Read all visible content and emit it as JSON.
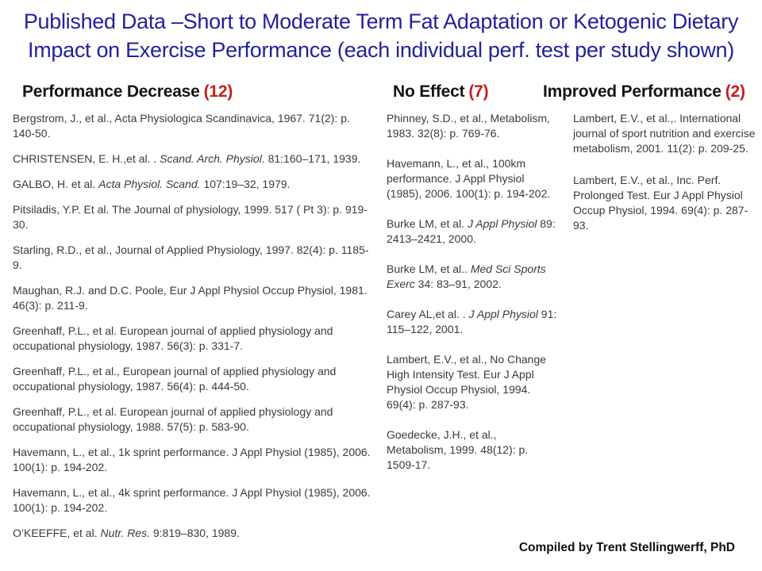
{
  "title": "Published Data –Short to Moderate Term Fat Adaptation or Ketogenic Dietary Impact on Exercise Performance (each individual perf. test per study shown)",
  "accent_colors": {
    "title_blue": "#22229b",
    "count_red": "#c31e1e"
  },
  "footer": {
    "credit": "Compiled by Trent Stellingwerff, PhD"
  },
  "columns": [
    {
      "header": "Performance Decrease",
      "count": "(12)",
      "items": [
        {
          "segments": [
            {
              "t": "Bergstrom, J., et al.,  Acta Physiologica Scandinavica, 1967. 71(2): p. 140-50.",
              "i": false
            }
          ]
        },
        {
          "segments": [
            {
              "t": "CHRISTENSEN, E. H.,et al. . ",
              "i": false
            },
            {
              "t": "Scand. Arch. Physiol",
              "i": true
            },
            {
              "t": ". 81:160–171, 1939.",
              "i": false
            }
          ]
        },
        {
          "segments": [
            {
              "t": "GALBO, H. et al. ",
              "i": false
            },
            {
              "t": "Acta Physiol. Scand.",
              "i": true
            },
            {
              "t": " 107:19–32, 1979.",
              "i": false
            }
          ]
        },
        {
          "segments": [
            {
              "t": "Pitsiladis, Y.P.  Et al.  The Journal of physiology, 1999. 517 ( Pt 3): p. 919-30.",
              "i": false
            }
          ]
        },
        {
          "segments": [
            {
              "t": "Starling, R.D., et al., Journal of Applied Physiology, 1997. 82(4): p. 1185-9.",
              "i": false
            }
          ]
        },
        {
          "segments": [
            {
              "t": "Maughan, R.J. and D.C. Poole, Eur J Appl Physiol Occup Physiol, 1981. 46(3): p. 211-9.",
              "i": false
            }
          ]
        },
        {
          "segments": [
            {
              "t": "Greenhaff, P.L., et  al.  European journal of applied physiology and occupational physiology, 1987. 56(3): p. 331-7.",
              "i": false
            }
          ]
        },
        {
          "segments": [
            {
              "t": "Greenhaff, P.L., et al., European journal of applied physiology and occupational physiology, 1987. 56(4): p. 444-50.",
              "i": false
            }
          ]
        },
        {
          "segments": [
            {
              "t": "Greenhaff, P.L., et al. European journal of applied physiology and occupational physiology, 1988. 57(5): p. 583-90.",
              "i": false
            }
          ]
        },
        {
          "segments": [
            {
              "t": "Havemann, L., et al., 1k sprint performance. J Appl Physiol (1985), 2006. 100(1): p. 194-202.",
              "i": false
            }
          ]
        },
        {
          "segments": [
            {
              "t": "Havemann, L., et al., 4k sprint performance. J Appl Physiol (1985), 2006. 100(1): p. 194-202.",
              "i": false
            }
          ]
        },
        {
          "segments": [
            {
              "t": "O’KEEFFE, et al. ",
              "i": false
            },
            {
              "t": "Nutr.  Res.",
              "i": true
            },
            {
              "t": " 9:819–830, 1989.",
              "i": false
            }
          ]
        }
      ]
    },
    {
      "header": "No Effect",
      "count": "(7)",
      "items": [
        {
          "segments": [
            {
              "t": "Phinney, S.D., et al., Metabolism, 1983. 32(8): p. 769-76.",
              "i": false
            }
          ]
        },
        {
          "segments": [
            {
              "t": "Havemann, L., et al., 100km performance.  J Appl Physiol (1985), 2006. 100(1): p. 194-202.",
              "i": false
            }
          ]
        },
        {
          "segments": [
            {
              "t": "Burke LM, et al. ",
              "i": false
            },
            {
              "t": "J Appl Physiol",
              "i": true
            },
            {
              "t": " 89: 2413–2421, 2000.",
              "i": false
            }
          ]
        },
        {
          "segments": [
            {
              "t": "Burke LM, et al.. ",
              "i": false
            },
            {
              "t": "Med Sci Sports Exerc",
              "i": true
            },
            {
              "t": " 34: 83–91, 2002.",
              "i": false
            }
          ]
        },
        {
          "segments": [
            {
              "t": "Carey AL,et al. . ",
              "i": false
            },
            {
              "t": "J Appl Physiol",
              "i": true
            },
            {
              "t": " 91: 115–122, 2001.",
              "i": false
            }
          ]
        },
        {
          "segments": [
            {
              "t": "Lambert, E.V., et al., No Change High Intensity Test. Eur J Appl Physiol Occup Physiol, 1994. 69(4): p. 287-93.",
              "i": false
            }
          ]
        },
        {
          "segments": [
            {
              "t": "Goedecke, J.H., et al., Metabolism, 1999. 48(12): p. 1509-17.",
              "i": false
            }
          ]
        }
      ]
    },
    {
      "header": "Improved Performance",
      "count": "(2)",
      "items": [
        {
          "segments": [
            {
              "t": "Lambert, E.V., et al.,. International journal of sport nutrition  and exercise metabolism, 2001. 11(2): p. 209-25.",
              "i": false
            }
          ]
        },
        {
          "segments": [
            {
              "t": "Lambert, E.V., et al., Inc. Perf. Prolonged Test. Eur J Appl Physiol Occup Physiol, 1994. 69(4): p. 287-93.",
              "i": false
            }
          ]
        }
      ]
    }
  ]
}
